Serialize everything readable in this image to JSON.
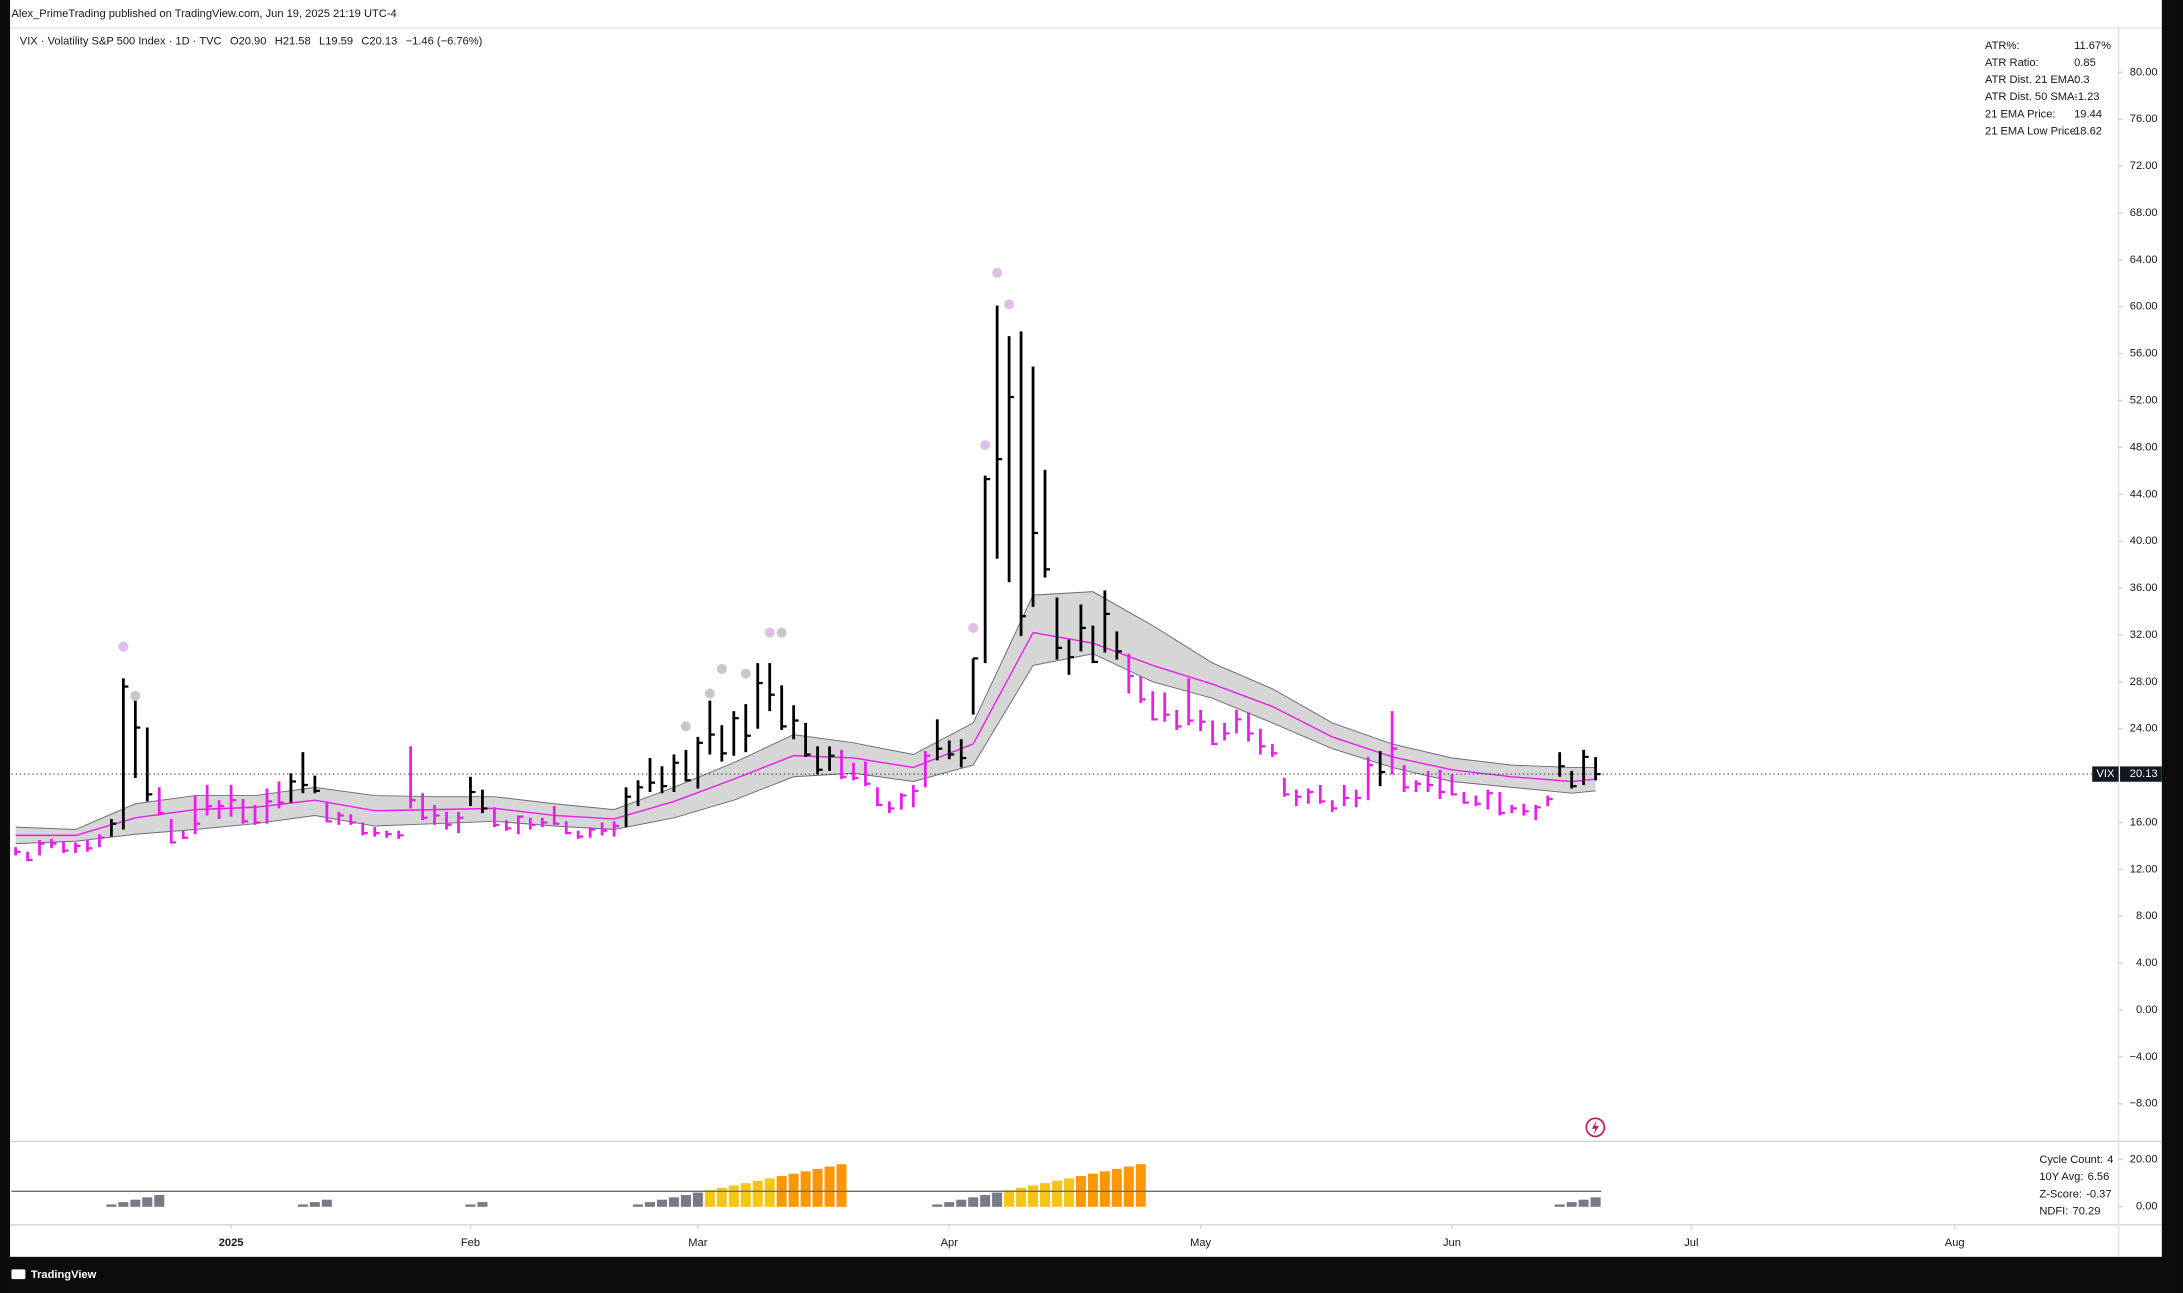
{
  "header": {
    "publisher": "Alex_PrimeTrading published on TradingView.com, Jun 19, 2025 21:19 UTC-4"
  },
  "legend": {
    "symbol": "VIX · Volatility S&P 500 Index · 1D · TVC",
    "open": "O20.90",
    "high": "H21.58",
    "low": "L19.59",
    "close": "C20.13",
    "change": "−1.46 (−6.76%)"
  },
  "footer": {
    "brand": "TradingView"
  },
  "chart_data": [
    {
      "type": "ohlc",
      "symbol": "VIX",
      "high": [
        13.9,
        13.5,
        14.5,
        14.6,
        14.4,
        14.3,
        14.5,
        15.0,
        16.3,
        28.3,
        26.5,
        24.1,
        19.0,
        16.3,
        15.3,
        18.3,
        19.2,
        17.9,
        19.2,
        18.0,
        17.5,
        18.9,
        19.5,
        20.2,
        22.0,
        20.0,
        17.8,
        16.9,
        16.7,
        16.0,
        15.6,
        15.3,
        15.3,
        22.5,
        18.5,
        17.5,
        16.9,
        16.9,
        19.9,
        18.8,
        17.3,
        16.2,
        16.6,
        16.4,
        16.4,
        17.4,
        16.1,
        15.3,
        15.6,
        16.0,
        16.1,
        19.0,
        19.6,
        21.5,
        20.8,
        21.8,
        22.2,
        23.3,
        26.4,
        24.3,
        25.5,
        26.1,
        29.6,
        29.6,
        27.7,
        26.0,
        24.5,
        22.5,
        22.5,
        22.2,
        21.1,
        21.2,
        19.0,
        17.8,
        18.5,
        19.2,
        22.1,
        24.8,
        23.0,
        23.1,
        30.0,
        45.6,
        60.1,
        57.5,
        57.9,
        54.9,
        46.1,
        35.2,
        31.6,
        34.6,
        32.8,
        35.8,
        32.3,
        30.4,
        28.5,
        27.2,
        27.1,
        25.6,
        28.3,
        25.6,
        24.7,
        24.5,
        25.6,
        25.4,
        24.0,
        22.7,
        19.8,
        18.8,
        18.9,
        19.2,
        17.9,
        19.2,
        18.8,
        21.6,
        22.1,
        25.5,
        20.9,
        19.6,
        20.4,
        20.5,
        20.1,
        18.6,
        18.3,
        18.8,
        18.6,
        17.5,
        17.6,
        17.5,
        18.3,
        22.0,
        20.4,
        22.2,
        21.58
      ],
      "low": [
        13.2,
        12.7,
        13.2,
        13.8,
        13.4,
        13.4,
        13.5,
        13.9,
        14.8,
        15.4,
        19.8,
        17.8,
        16.6,
        14.2,
        14.6,
        15.0,
        16.6,
        16.3,
        16.5,
        15.9,
        15.8,
        15.9,
        17.2,
        17.7,
        18.5,
        18.5,
        16.0,
        15.8,
        15.8,
        14.9,
        14.8,
        14.7,
        14.6,
        17.2,
        16.2,
        15.8,
        15.4,
        15.1,
        17.4,
        16.8,
        15.6,
        15.3,
        15.0,
        15.4,
        15.6,
        15.8,
        15.0,
        14.6,
        14.7,
        14.9,
        14.8,
        15.6,
        17.4,
        18.6,
        18.5,
        18.6,
        19.5,
        18.9,
        21.8,
        21.2,
        21.7,
        22.0,
        24.0,
        25.5,
        23.9,
        23.1,
        21.6,
        20.1,
        20.4,
        19.7,
        19.6,
        19.1,
        17.4,
        16.8,
        17.1,
        17.3,
        19.0,
        21.3,
        21.4,
        20.7,
        25.2,
        29.6,
        38.5,
        36.5,
        31.9,
        34.4,
        36.9,
        29.9,
        28.6,
        30.6,
        29.6,
        30.5,
        29.9,
        27.0,
        26.2,
        24.7,
        24.6,
        23.9,
        24.3,
        23.8,
        22.6,
        23.0,
        23.6,
        22.9,
        21.8,
        21.6,
        18.2,
        17.4,
        17.6,
        17.6,
        16.9,
        17.4,
        17.3,
        17.9,
        19.1,
        20.1,
        18.6,
        18.6,
        18.6,
        18.0,
        18.3,
        17.6,
        17.4,
        17.1,
        16.6,
        16.8,
        16.6,
        16.2,
        17.4,
        19.9,
        18.9,
        19.2,
        19.59
      ],
      "close": [
        13.5,
        12.8,
        14.2,
        14.2,
        13.6,
        14.0,
        13.8,
        14.7,
        15.9,
        27.6,
        24.1,
        18.4,
        16.8,
        14.3,
        14.7,
        15.9,
        17.4,
        17.4,
        17.9,
        16.1,
        16.0,
        17.8,
        17.7,
        19.5,
        19.2,
        18.7,
        16.1,
        16.6,
        16.0,
        15.1,
        15.1,
        15.0,
        14.9,
        17.9,
        16.4,
        16.6,
        15.8,
        16.4,
        18.6,
        17.2,
        15.8,
        15.5,
        16.5,
        15.8,
        16.0,
        15.9,
        15.1,
        14.8,
        15.4,
        15.3,
        15.7,
        18.2,
        19.0,
        19.4,
        19.1,
        21.1,
        19.6,
        22.8,
        23.5,
        21.9,
        24.9,
        23.4,
        27.9,
        26.9,
        24.2,
        24.7,
        21.8,
        20.5,
        21.7,
        19.9,
        19.8,
        19.3,
        17.5,
        17.2,
        18.3,
        18.7,
        21.7,
        22.3,
        21.8,
        21.5,
        30.0,
        45.3,
        47.0,
        52.3,
        33.6,
        40.7,
        37.6,
        30.9,
        30.1,
        32.6,
        29.7,
        33.8,
        30.6,
        28.5,
        26.5,
        24.8,
        25.2,
        24.2,
        24.7,
        24.6,
        22.7,
        23.6,
        24.8,
        23.6,
        22.5,
        21.9,
        18.4,
        18.2,
        18.6,
        17.8,
        17.2,
        18.1,
        18.1,
        20.9,
        20.3,
        22.3,
        19.0,
        19.3,
        19.2,
        18.6,
        18.4,
        17.7,
        17.6,
        18.5,
        16.8,
        17.2,
        16.95,
        17.3,
        18.0,
        20.8,
        19.1,
        21.6,
        20.13
      ],
      "colors": [
        "#e91ee9",
        "#e91ee9",
        "#e91ee9",
        "#e91ee9",
        "#e91ee9",
        "#e91ee9",
        "#e91ee9",
        "#e91ee9",
        "#000000",
        "#000000",
        "#000000",
        "#000000",
        "#e91ee9",
        "#e91ee9",
        "#e91ee9",
        "#e91ee9",
        "#e91ee9",
        "#e91ee9",
        "#e91ee9",
        "#e91ee9",
        "#e91ee9",
        "#e91ee9",
        "#e91ee9",
        "#000000",
        "#000000",
        "#000000",
        "#e91ee9",
        "#e91ee9",
        "#e91ee9",
        "#e91ee9",
        "#e91ee9",
        "#e91ee9",
        "#e91ee9",
        "#e91ee9",
        "#e91ee9",
        "#e91ee9",
        "#e91ee9",
        "#e91ee9",
        "#000000",
        "#000000",
        "#e91ee9",
        "#e91ee9",
        "#e91ee9",
        "#e91ee9",
        "#e91ee9",
        "#e91ee9",
        "#e91ee9",
        "#e91ee9",
        "#e91ee9",
        "#e91ee9",
        "#e91ee9",
        "#000000",
        "#000000",
        "#000000",
        "#000000",
        "#000000",
        "#000000",
        "#000000",
        "#000000",
        "#000000",
        "#000000",
        "#000000",
        "#000000",
        "#000000",
        "#000000",
        "#000000",
        "#000000",
        "#000000",
        "#000000",
        "#e91ee9",
        "#e91ee9",
        "#e91ee9",
        "#e91ee9",
        "#e91ee9",
        "#e91ee9",
        "#e91ee9",
        "#e91ee9",
        "#000000",
        "#000000",
        "#000000",
        "#000000",
        "#000000",
        "#000000",
        "#000000",
        "#000000",
        "#000000",
        "#000000",
        "#000000",
        "#000000",
        "#000000",
        "#000000",
        "#000000",
        "#000000",
        "#e91ee9",
        "#e91ee9",
        "#e91ee9",
        "#e91ee9",
        "#e91ee9",
        "#e91ee9",
        "#e91ee9",
        "#e91ee9",
        "#e91ee9",
        "#e91ee9",
        "#e91ee9",
        "#e91ee9",
        "#e91ee9",
        "#e91ee9",
        "#e91ee9",
        "#e91ee9",
        "#e91ee9",
        "#e91ee9",
        "#e91ee9",
        "#e91ee9",
        "#e91ee9",
        "#000000",
        "#e91ee9",
        "#e91ee9",
        "#e91ee9",
        "#e91ee9",
        "#e91ee9",
        "#e91ee9",
        "#e91ee9",
        "#e91ee9",
        "#e91ee9",
        "#e91ee9",
        "#e91ee9",
        "#e91ee9",
        "#e91ee9",
        "#e91ee9",
        "#000000",
        "#000000",
        "#000000",
        "#000000"
      ],
      "band": {
        "x": [
          0,
          5,
          10,
          15,
          20,
          25,
          30,
          35,
          40,
          45,
          50,
          55,
          60,
          65,
          70,
          75,
          80,
          85,
          90,
          95,
          100,
          105,
          110,
          115,
          120,
          125,
          130,
          132
        ],
        "upper": [
          15.6,
          15.4,
          17.6,
          18.3,
          18.3,
          19.0,
          18.3,
          18.2,
          18.2,
          17.6,
          17.1,
          19.0,
          21.1,
          23.5,
          22.8,
          21.8,
          24.5,
          35.4,
          35.7,
          32.8,
          29.6,
          27.4,
          24.5,
          22.7,
          21.5,
          20.9,
          20.7,
          20.7
        ],
        "lower": [
          14.2,
          14.4,
          15.0,
          15.4,
          15.9,
          16.6,
          15.7,
          15.9,
          16.1,
          15.7,
          15.4,
          16.4,
          17.9,
          19.9,
          20.2,
          19.5,
          20.9,
          29.4,
          30.4,
          28.0,
          26.6,
          24.5,
          22.3,
          20.7,
          19.5,
          19.0,
          18.5,
          18.7
        ],
        "mid": [
          14.9,
          14.9,
          16.4,
          17.1,
          17.3,
          17.9,
          17.0,
          17.1,
          17.2,
          16.6,
          16.3,
          17.8,
          19.7,
          21.7,
          21.5,
          20.7,
          22.7,
          32.2,
          31.3,
          29.4,
          27.8,
          25.9,
          23.3,
          21.6,
          20.5,
          19.9,
          19.5,
          19.7
        ],
        "color": "#d6d6d6",
        "line_color": "#6a6d78",
        "mid_color": "#e91ee9"
      },
      "signals": {
        "x": [
          9,
          10,
          56,
          58,
          59,
          61,
          63,
          64,
          80,
          81,
          82,
          83
        ],
        "y": [
          31.0,
          26.8,
          24.2,
          27.0,
          29.1,
          28.7,
          32.2,
          32.2,
          32.6,
          48.2,
          62.9,
          60.2
        ],
        "colors": [
          "#e1bee7",
          "#c8c8c8",
          "#c8c8c8",
          "#c8c8c8",
          "#c8c8c8",
          "#c8c8c8",
          "#e1bee7",
          "#c8c8c8",
          "#e1bee7",
          "#e1bee7",
          "#e1bee7",
          "#e1bee7"
        ]
      },
      "xlim": [
        -0.35,
        175.7
      ],
      "xticks": [
        {
          "value": 18,
          "label": "2025"
        },
        {
          "value": 38,
          "label": "Feb"
        },
        {
          "value": 57,
          "label": "Mar"
        },
        {
          "value": 78,
          "label": "Apr"
        },
        {
          "value": 99,
          "label": "May"
        },
        {
          "value": 120,
          "label": "Jun"
        },
        {
          "value": 140,
          "label": "Jul"
        },
        {
          "value": 162,
          "label": "Aug"
        }
      ],
      "ylim": [
        -11.2,
        83.8
      ],
      "yticks": [
        {
          "value": 80,
          "label": "80.00"
        },
        {
          "value": 76,
          "label": "76.00"
        },
        {
          "value": 72,
          "label": "72.00"
        },
        {
          "value": 68,
          "label": "68.00"
        },
        {
          "value": 64,
          "label": "64.00"
        },
        {
          "value": 60,
          "label": "60.00"
        },
        {
          "value": 56,
          "label": "56.00"
        },
        {
          "value": 52,
          "label": "52.00"
        },
        {
          "value": 48,
          "label": "48.00"
        },
        {
          "value": 44,
          "label": "44.00"
        },
        {
          "value": 40,
          "label": "40.00"
        },
        {
          "value": 36,
          "label": "36.00"
        },
        {
          "value": 32,
          "label": "32.00"
        },
        {
          "value": 28,
          "label": "28.00"
        },
        {
          "value": 24,
          "label": "24.00"
        },
        {
          "value": 20,
          "label": "20.00"
        },
        {
          "value": 16,
          "label": "16.00"
        },
        {
          "value": 12,
          "label": "12.00"
        },
        {
          "value": 8,
          "label": "8.00"
        },
        {
          "value": 4,
          "label": "4.00"
        },
        {
          "value": 0,
          "label": "0.00"
        },
        {
          "value": -4,
          "label": "−4.00"
        },
        {
          "value": -8,
          "label": "−8.00"
        }
      ],
      "grid": false,
      "stats": [
        {
          "label": "ATR%:",
          "value": "11.67%"
        },
        {
          "label": "ATR Ratio:",
          "value": 0.85
        },
        {
          "label": "ATR Dist. 21 EMA:",
          "value": 0.3
        },
        {
          "label": "ATR Dist. 50 SMA:",
          "value": -1.23
        },
        {
          "label": "21 EMA Price:",
          "value": 19.44
        },
        {
          "label": "21 EMA Low Price:",
          "value": 18.62
        }
      ]
    },
    {
      "type": "bar",
      "values": [
        null,
        null,
        null,
        null,
        null,
        null,
        null,
        null,
        1,
        2,
        3,
        4,
        5,
        null,
        null,
        null,
        null,
        null,
        null,
        null,
        null,
        null,
        null,
        null,
        1,
        2,
        3,
        null,
        null,
        null,
        null,
        null,
        null,
        null,
        null,
        null,
        null,
        null,
        1,
        2,
        null,
        null,
        null,
        null,
        null,
        null,
        null,
        null,
        null,
        null,
        null,
        null,
        1,
        2,
        3,
        4,
        5,
        6,
        7,
        8,
        9,
        10,
        11,
        12,
        13,
        14,
        15,
        16,
        17,
        18,
        null,
        null,
        null,
        null,
        null,
        null,
        null,
        1,
        2,
        3,
        4,
        5,
        6,
        7,
        8,
        9,
        10,
        11,
        12,
        13,
        14,
        15,
        16,
        17,
        18,
        null,
        null,
        null,
        null,
        null,
        null,
        null,
        null,
        null,
        null,
        null,
        null,
        null,
        null,
        null,
        null,
        null,
        null,
        null,
        null,
        null,
        null,
        null,
        null,
        null,
        null,
        null,
        null,
        null,
        null,
        null,
        null,
        null,
        null,
        1,
        2,
        3,
        4
      ],
      "colors": [
        null,
        null,
        null,
        null,
        null,
        null,
        null,
        null,
        "#787b86",
        "#787b86",
        "#787b86",
        "#787b86",
        "#787b86",
        null,
        null,
        null,
        null,
        null,
        null,
        null,
        null,
        null,
        null,
        null,
        "#787b86",
        "#787b86",
        "#787b86",
        null,
        null,
        null,
        null,
        null,
        null,
        null,
        null,
        null,
        null,
        null,
        "#787b86",
        "#787b86",
        null,
        null,
        null,
        null,
        null,
        null,
        null,
        null,
        null,
        null,
        null,
        null,
        "#787b86",
        "#787b86",
        "#787b86",
        "#787b86",
        "#787b86",
        "#787b86",
        "#f7c516",
        "#f7c516",
        "#f7c516",
        "#f7c516",
        "#f7c516",
        "#f7c516",
        "#ff9800",
        "#ff9800",
        "#ff9800",
        "#ff9800",
        "#ff9800",
        "#ff9800",
        null,
        null,
        null,
        null,
        null,
        null,
        null,
        "#787b86",
        "#787b86",
        "#787b86",
        "#787b86",
        "#787b86",
        "#787b86",
        "#f7c516",
        "#f7c516",
        "#f7c516",
        "#f7c516",
        "#f7c516",
        "#f7c516",
        "#ff9800",
        "#ff9800",
        "#ff9800",
        "#ff9800",
        "#ff9800",
        "#ff9800",
        null,
        null,
        null,
        null,
        null,
        null,
        null,
        null,
        null,
        null,
        null,
        null,
        null,
        null,
        null,
        null,
        null,
        null,
        null,
        null,
        null,
        null,
        null,
        null,
        null,
        null,
        null,
        null,
        null,
        null,
        null,
        null,
        null,
        null,
        "#787b86",
        "#787b86",
        "#787b86",
        "#787b86"
      ],
      "ylim": [
        -7.6,
        26.5
      ],
      "yticks": [
        {
          "value": 20,
          "label": "20.00"
        },
        {
          "value": 0,
          "label": "0.00"
        }
      ],
      "stats": [
        {
          "label": "Cycle Count:",
          "value": 4
        },
        {
          "label": "10Y Avg:",
          "value": 6.56
        },
        {
          "label": "Z-Score:",
          "value": -0.37
        },
        {
          "label": "NDFI:",
          "value": 70.29
        }
      ]
    }
  ]
}
